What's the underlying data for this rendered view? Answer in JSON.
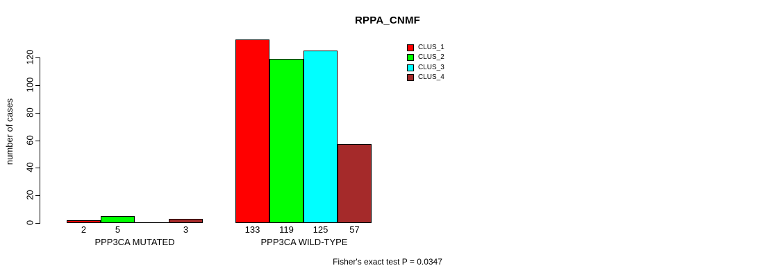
{
  "chart_data": {
    "type": "bar",
    "title": "RPPA_CNMF",
    "ylabel": "number of cases",
    "xlabel": "",
    "ylim": [
      0,
      120
    ],
    "yticks": [
      0,
      20,
      40,
      60,
      80,
      100,
      120
    ],
    "grid": false,
    "categories": [
      "PPP3CA MUTATED",
      "PPP3CA WILD-TYPE"
    ],
    "series": [
      {
        "name": "CLUS_1",
        "color": "#FF0000",
        "values": [
          2,
          133
        ]
      },
      {
        "name": "CLUS_2",
        "color": "#00FF00",
        "values": [
          5,
          119
        ]
      },
      {
        "name": "CLUS_3",
        "color": "#00FFFF",
        "values": [
          0,
          125
        ]
      },
      {
        "name": "CLUS_4",
        "color": "#A52A2A",
        "values": [
          3,
          57
        ]
      }
    ],
    "bar_labels": [
      [
        "2",
        "5",
        "",
        "3"
      ],
      [
        "133",
        "119",
        "125",
        "57"
      ]
    ],
    "legend_position": "top-right",
    "annotation": "Fisher's exact test P = 0.0347",
    "colors": {
      "bar_border": "#000000",
      "text": "#000000",
      "background": "#FFFFFF"
    }
  }
}
